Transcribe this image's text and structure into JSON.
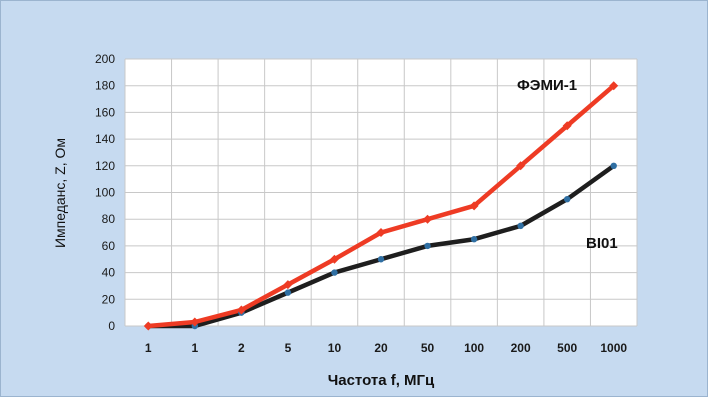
{
  "chart_data": {
    "type": "line",
    "categories": [
      "1",
      "1",
      "2",
      "5",
      "10",
      "20",
      "50",
      "100",
      "200",
      "500",
      "1000"
    ],
    "xlabel": "Частота f, МГц",
    "ylabel": "Импеданс, Z, Ом",
    "ylim": [
      0,
      200
    ],
    "yticks": [
      0,
      20,
      40,
      60,
      80,
      100,
      120,
      140,
      160,
      180,
      200
    ],
    "grid": true,
    "series": [
      {
        "name": "ФЭМИ-1",
        "color": "#ee3b24",
        "marker_color": "#ee3b24",
        "values": [
          0,
          3,
          12,
          31,
          50,
          70,
          80,
          90,
          120,
          150,
          180
        ]
      },
      {
        "name": "BI01",
        "color": "#1e1e1e",
        "marker_color": "#2f6fa3",
        "values": [
          0,
          0,
          10,
          25,
          40,
          50,
          60,
          65,
          75,
          95,
          120
        ]
      }
    ]
  },
  "colors": {
    "background": "#c6daf0",
    "plot_area": "#ffffff",
    "gridline": "#c8c8c8"
  }
}
